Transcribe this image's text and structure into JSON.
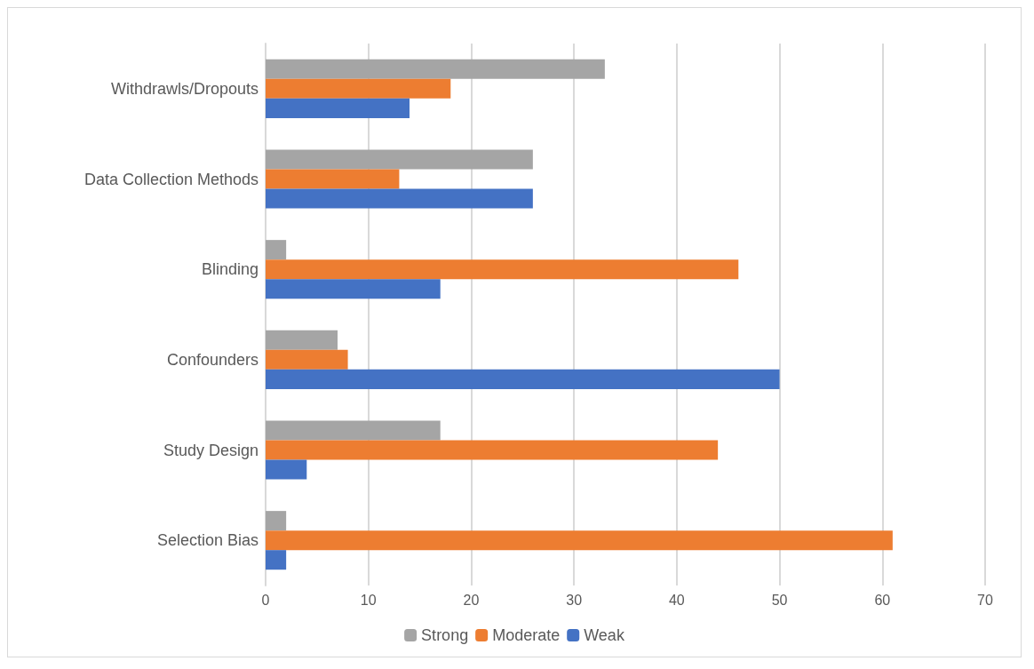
{
  "chart_data": {
    "type": "bar",
    "orientation": "horizontal",
    "categories": [
      "Withdrawls/Dropouts",
      "Data Collection Methods",
      "Blinding",
      "Confounders",
      "Study Design",
      "Selection Bias"
    ],
    "series": [
      {
        "name": "Strong",
        "color": "#a5a5a5",
        "values": [
          33,
          26,
          2,
          7,
          17,
          2
        ]
      },
      {
        "name": "Moderate",
        "color": "#ed7d31",
        "values": [
          18,
          13,
          46,
          8,
          44,
          61
        ]
      },
      {
        "name": "Weak",
        "color": "#4472c4",
        "values": [
          14,
          26,
          17,
          50,
          4,
          2
        ]
      }
    ],
    "xlim": [
      0,
      70
    ],
    "xticks": [
      0,
      10,
      20,
      30,
      40,
      50,
      60,
      70
    ],
    "grid": "x",
    "legend": "bottom"
  }
}
